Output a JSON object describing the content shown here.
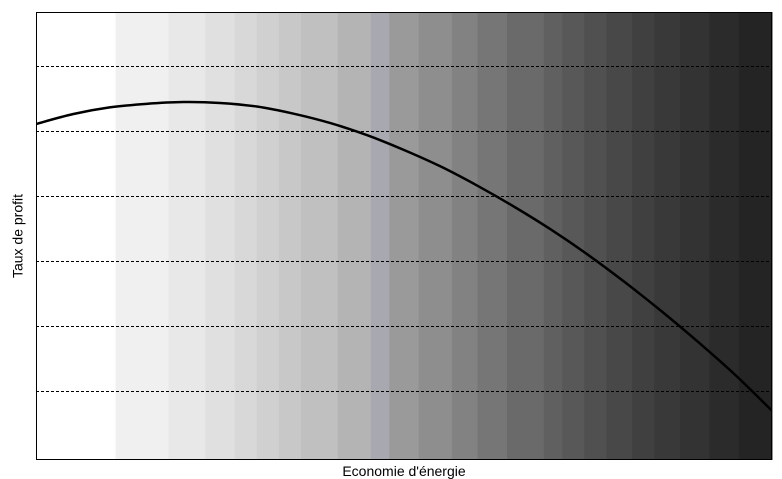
{
  "chart_data": {
    "type": "line",
    "title": "",
    "xlabel": "Economie d'énergie",
    "ylabel": "Taux de profit",
    "grid": "horizontal-dashed",
    "legend": "none",
    "xlim": [
      0,
      1
    ],
    "ylim": [
      0,
      1
    ],
    "series": [
      {
        "x": [
          0.0,
          0.05,
          0.1,
          0.15,
          0.2,
          0.25,
          0.3,
          0.35,
          0.4,
          0.45,
          0.5,
          0.55,
          0.6,
          0.65,
          0.7,
          0.75,
          0.8,
          0.85,
          0.9,
          0.95,
          1.0
        ],
        "values": [
          0.75,
          0.772,
          0.787,
          0.795,
          0.799,
          0.797,
          0.789,
          0.773,
          0.752,
          0.725,
          0.692,
          0.655,
          0.612,
          0.565,
          0.514,
          0.458,
          0.397,
          0.332,
          0.263,
          0.19,
          0.11
        ]
      }
    ],
    "gridlines_y": [
      0.155,
      0.3,
      0.445,
      0.59,
      0.735,
      0.88
    ],
    "background_bands": {
      "direction": "horizontal-gradient",
      "stops": [
        {
          "x": 0.0,
          "color": "#ffffff"
        },
        {
          "x": 0.108,
          "color": "#f0f0f0"
        },
        {
          "x": 0.18,
          "color": "#e8e8e8"
        },
        {
          "x": 0.23,
          "color": "#e0e0e0"
        },
        {
          "x": 0.27,
          "color": "#d8d8d8"
        },
        {
          "x": 0.3,
          "color": "#d0d0d0"
        },
        {
          "x": 0.33,
          "color": "#c8c8c8"
        },
        {
          "x": 0.36,
          "color": "#c0c0c0"
        },
        {
          "x": 0.41,
          "color": "#b4b4b4"
        },
        {
          "x": 0.455,
          "color": "#a8a8b0"
        },
        {
          "x": 0.48,
          "color": "#9a9a9a"
        },
        {
          "x": 0.52,
          "color": "#8e8e8e"
        },
        {
          "x": 0.565,
          "color": "#828282"
        },
        {
          "x": 0.6,
          "color": "#767676"
        },
        {
          "x": 0.64,
          "color": "#6a6a6a"
        },
        {
          "x": 0.69,
          "color": "#606060"
        },
        {
          "x": 0.715,
          "color": "#585858"
        },
        {
          "x": 0.745,
          "color": "#505050"
        },
        {
          "x": 0.775,
          "color": "#484848"
        },
        {
          "x": 0.81,
          "color": "#404040"
        },
        {
          "x": 0.84,
          "color": "#393939"
        },
        {
          "x": 0.875,
          "color": "#333333"
        },
        {
          "x": 0.915,
          "color": "#2b2b2b"
        },
        {
          "x": 0.955,
          "color": "#242424"
        },
        {
          "x": 1.0,
          "color": "#1c1c1c"
        }
      ]
    },
    "line_color": "#000000",
    "gridline_color": "#000000"
  }
}
